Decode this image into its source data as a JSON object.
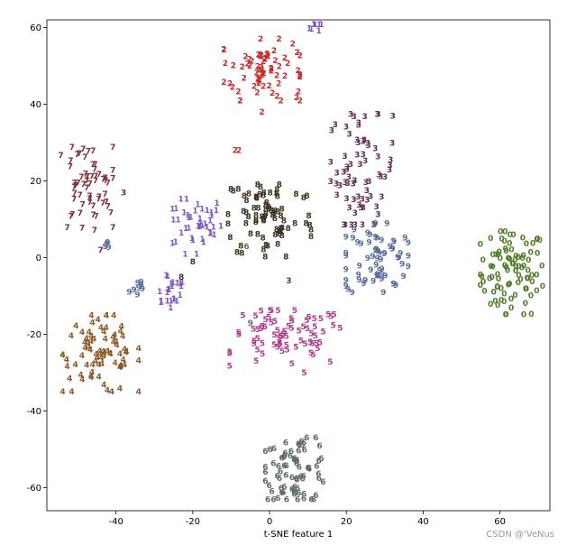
{
  "chart_data": {
    "type": "scatter",
    "title": "",
    "xlabel": "t-SNE feature 1",
    "ylabel": "",
    "xlim": [
      -58,
      73
    ],
    "ylim": [
      -66,
      62
    ],
    "x_ticks": [
      -40,
      -20,
      0,
      20,
      40,
      60
    ],
    "y_ticks": [
      -60,
      -40,
      -20,
      0,
      20,
      40,
      60
    ],
    "grid": false,
    "legend": "none",
    "clusters": [
      {
        "label": "0",
        "color": "#4f7a28",
        "center": [
          63,
          -4
        ],
        "spread": [
          4.5,
          6
        ],
        "count": 90
      },
      {
        "label": "1",
        "color": "#7e57c2",
        "center": [
          -19,
          9
        ],
        "spread": [
          3.5,
          3.5
        ],
        "count": 40
      },
      {
        "label": "1",
        "color": "#7e57c2",
        "center": [
          -26,
          -8
        ],
        "spread": [
          2.5,
          3
        ],
        "count": 22
      },
      {
        "label": "1",
        "color": "#7e57c2",
        "center": [
          13,
          61
        ],
        "spread": [
          1.5,
          1.5
        ],
        "count": 8
      },
      {
        "label": "2",
        "color": "#c62828",
        "center": [
          -2,
          49
        ],
        "spread": [
          5.5,
          4.5
        ],
        "count": 70
      },
      {
        "label": "3",
        "color": "#5b2a4f",
        "center": [
          24,
          23
        ],
        "spread": [
          4.5,
          8
        ],
        "count": 70
      },
      {
        "label": "4",
        "color": "#8a5a2b",
        "center": [
          -44,
          -25
        ],
        "spread": [
          5.5,
          5.5
        ],
        "count": 80
      },
      {
        "label": "5",
        "color": "#b03a8a",
        "center": [
          4,
          -21
        ],
        "spread": [
          8,
          4
        ],
        "count": 75
      },
      {
        "label": "6",
        "color": "#5c6b62",
        "center": [
          7,
          -55
        ],
        "spread": [
          4.5,
          4.5
        ],
        "count": 75
      },
      {
        "label": "7",
        "color": "#7b2d3b",
        "center": [
          -48,
          18
        ],
        "spread": [
          4,
          6
        ],
        "count": 60
      },
      {
        "label": "8",
        "color": "#3b3220",
        "center": [
          0,
          11
        ],
        "spread": [
          6,
          6
        ],
        "count": 80
      },
      {
        "label": "9",
        "color": "#5a6a9a",
        "center": [
          28,
          0
        ],
        "spread": [
          4.5,
          5
        ],
        "count": 65
      },
      {
        "label": "9",
        "color": "#5a6a9a",
        "center": [
          -35,
          -8
        ],
        "spread": [
          1.5,
          1.5
        ],
        "count": 8
      },
      {
        "label": "9",
        "color": "#5a6a9a",
        "center": [
          -42,
          3
        ],
        "spread": [
          1.2,
          1
        ],
        "count": 5
      }
    ],
    "points": [
      {
        "label": "2",
        "color": "#c62828",
        "x": -2,
        "y": 38
      },
      {
        "label": "2",
        "color": "#c62828",
        "x": -8,
        "y": 28
      },
      {
        "label": "2",
        "color": "#c62828",
        "x": -9,
        "y": 28
      },
      {
        "label": "7",
        "color": "#7b2d3b",
        "x": -44,
        "y": 2
      },
      {
        "label": "3",
        "color": "#5b2a4f",
        "x": -38,
        "y": 17
      },
      {
        "label": "3",
        "color": "#5b2a4f",
        "x": 5,
        "y": -6
      },
      {
        "label": "6",
        "color": "#5c6b62",
        "x": -6,
        "y": 3
      },
      {
        "label": "8",
        "color": "#3b3220",
        "x": -23,
        "y": -5
      },
      {
        "label": "8",
        "color": "#3b3220",
        "x": -20,
        "y": -1
      },
      {
        "label": "5",
        "color": "#b03a8a",
        "x": 9,
        "y": -30
      },
      {
        "label": "9",
        "color": "#5a6a9a",
        "x": -5,
        "y": -17
      },
      {
        "label": "1",
        "color": "#7e57c2",
        "x": -22,
        "y": 1
      },
      {
        "label": "1",
        "color": "#7e57c2",
        "x": -19,
        "y": 1
      }
    ]
  },
  "watermark": "CSDN @'VeNus"
}
